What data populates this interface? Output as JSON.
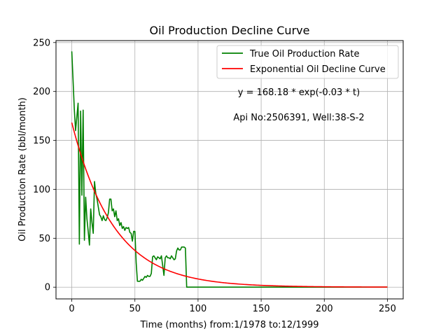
{
  "chart_data": {
    "type": "line",
    "title": "Oil Production Decline Curve",
    "xlabel": "Time (months) from:1/1978 to:12/1999",
    "ylabel": "Oil Production Rate (bbl/month)",
    "xlim": [
      -12.5,
      262.5
    ],
    "ylim": [
      -12,
      252
    ],
    "x_ticks": [
      0,
      50,
      100,
      150,
      200,
      250
    ],
    "y_ticks": [
      0,
      50,
      100,
      150,
      200,
      250
    ],
    "grid": true,
    "legend_position": "top-right",
    "annotations": [
      "y = 168.18 * exp(-0.03 * t)",
      "Api No:2506391, Well:38-S-2"
    ],
    "series": [
      {
        "name": "True Oil Production Rate",
        "color": "#008000",
        "x": [
          0,
          1,
          2,
          3,
          4,
          5,
          6,
          7,
          8,
          9,
          10,
          11,
          12,
          13,
          14,
          15,
          16,
          17,
          18,
          19,
          20,
          21,
          22,
          23,
          24,
          25,
          26,
          27,
          28,
          29,
          30,
          31,
          32,
          33,
          34,
          35,
          36,
          37,
          38,
          39,
          40,
          41,
          42,
          43,
          44,
          45,
          46,
          47,
          48,
          49,
          50,
          51,
          52,
          53,
          54,
          55,
          56,
          57,
          58,
          59,
          60,
          61,
          62,
          63,
          64,
          65,
          66,
          67,
          68,
          69,
          70,
          71,
          72,
          73,
          74,
          75,
          76,
          77,
          78,
          79,
          80,
          81,
          82,
          83,
          84,
          85,
          86,
          87,
          88,
          89,
          90,
          91,
          92,
          250
        ],
        "y": [
          241,
          212,
          182,
          160,
          174,
          188,
          44,
          180,
          94,
          181,
          48,
          92,
          70,
          57,
          43,
          80,
          66,
          55,
          108,
          96,
          90,
          82,
          74,
          72,
          68,
          73,
          69,
          68,
          71,
          76,
          90,
          90,
          78,
          80,
          72,
          78,
          68,
          70,
          63,
          66,
          60,
          62,
          58,
          61,
          60,
          61,
          56,
          55,
          47,
          57,
          57,
          25,
          6,
          6,
          6,
          8,
          7,
          9,
          11,
          10,
          12,
          11,
          11,
          14,
          31,
          32,
          30,
          28,
          31,
          30,
          29,
          32,
          22,
          12,
          30,
          32,
          30,
          30,
          29,
          32,
          30,
          28,
          29,
          37,
          40,
          38,
          38,
          41,
          41,
          41,
          40,
          0,
          0,
          0
        ]
      },
      {
        "name": "Exponential Oil Decline Curve",
        "color": "#ff0000",
        "amplitude": 168.18,
        "rate": 0.03,
        "x_range": [
          0,
          250
        ]
      }
    ]
  }
}
